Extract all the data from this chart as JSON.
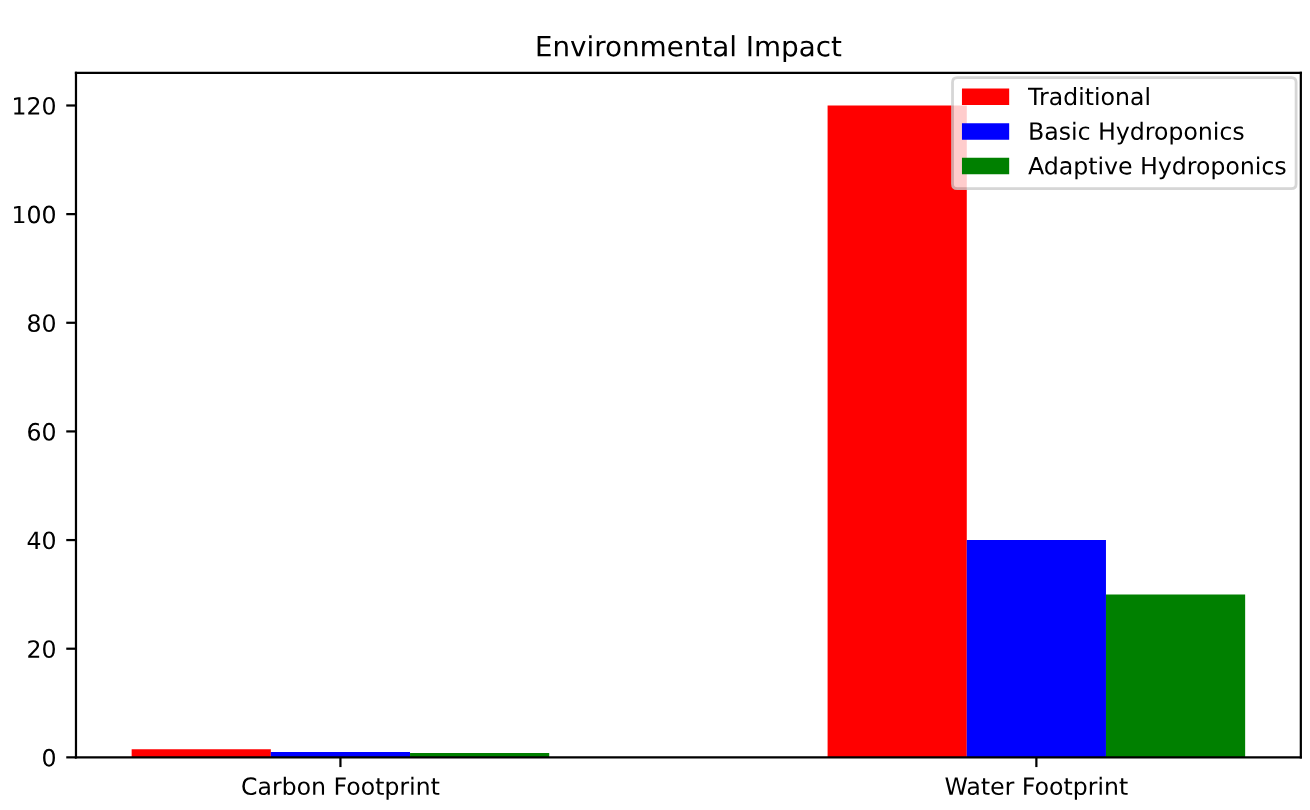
{
  "chart_data": {
    "type": "bar",
    "title": "Environmental Impact",
    "categories": [
      "Carbon Footprint",
      "Water Footprint"
    ],
    "series": [
      {
        "name": "Traditional",
        "color": "#ff0000",
        "values": [
          1.5,
          120
        ]
      },
      {
        "name": "Basic Hydroponics",
        "color": "#0000ff",
        "values": [
          1.0,
          40
        ]
      },
      {
        "name": "Adaptive Hydroponics",
        "color": "#008000",
        "values": [
          0.8,
          30
        ]
      }
    ],
    "ylim": [
      0,
      126
    ],
    "yticks": [
      0,
      20,
      40,
      60,
      80,
      100,
      120
    ],
    "grid": false,
    "legend": "top right"
  }
}
